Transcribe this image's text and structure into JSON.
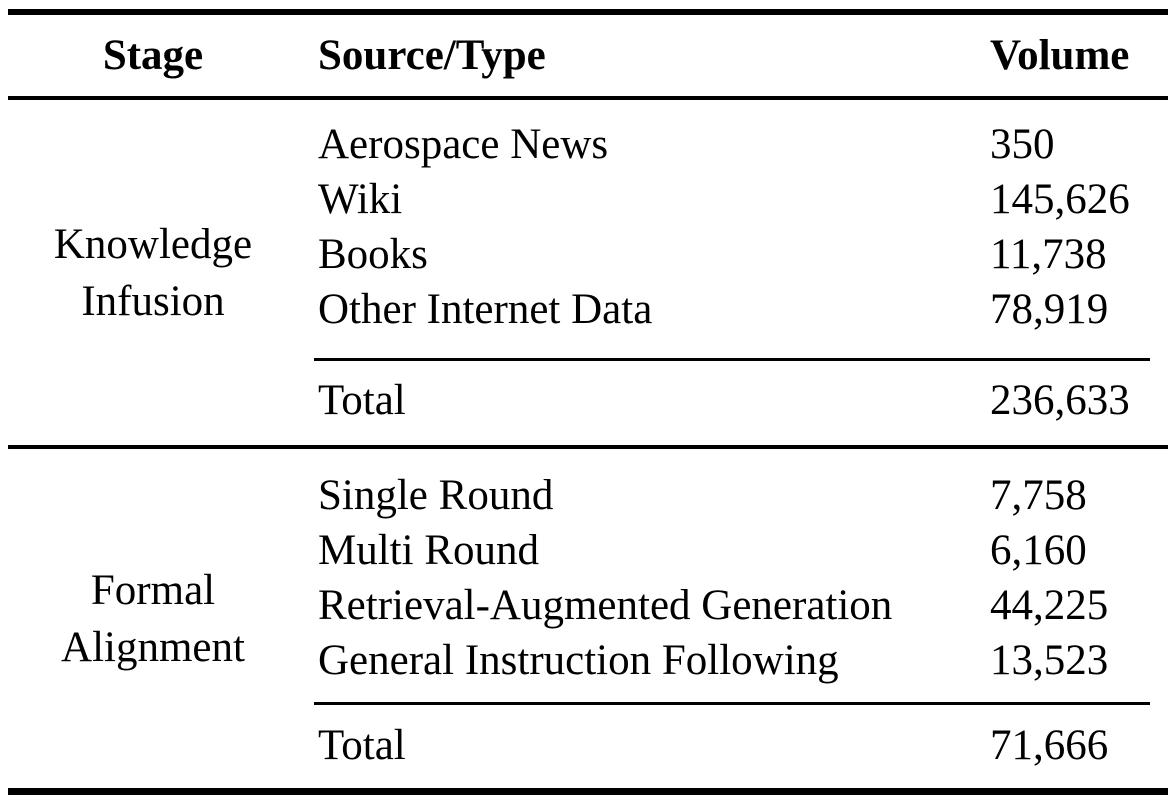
{
  "table": {
    "columns": [
      "Stage",
      "Source/Type",
      "Volume"
    ],
    "sections": [
      {
        "stage_line1": "Knowledge",
        "stage_line2": "Infusion",
        "rows": [
          {
            "source": "Aerospace News",
            "volume": "350"
          },
          {
            "source": "Wiki",
            "volume": "145,626"
          },
          {
            "source": "Books",
            "volume": "11,738"
          },
          {
            "source": "Other Internet Data",
            "volume": "78,919"
          }
        ],
        "total_label": "Total",
        "total_volume": "236,633"
      },
      {
        "stage_line1": "Formal",
        "stage_line2": "Alignment",
        "rows": [
          {
            "source": "Single Round",
            "volume": "7,758"
          },
          {
            "source": "Multi Round",
            "volume": "6,160"
          },
          {
            "source": "Retrieval-Augmented Generation",
            "volume": "44,225"
          },
          {
            "source": "General Instruction Following",
            "volume": "13,523"
          }
        ],
        "total_label": "Total",
        "total_volume": "71,666"
      }
    ]
  },
  "colors": {
    "text": "#000000",
    "background": "#ffffff",
    "rule": "#000000"
  }
}
